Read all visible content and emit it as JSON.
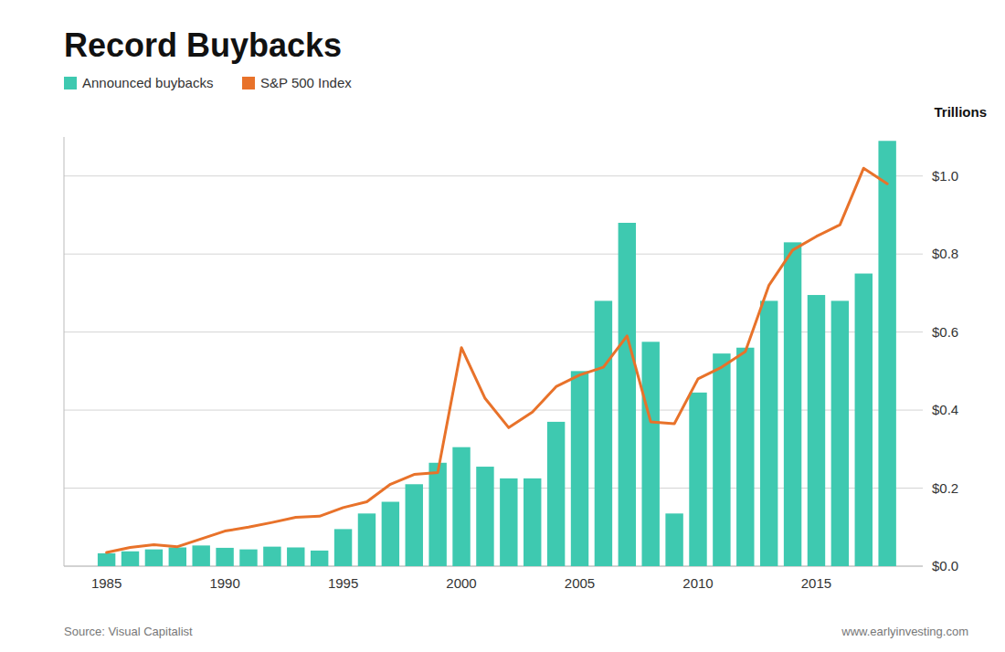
{
  "chart_data": {
    "type": "bar",
    "title": "Record Buybacks",
    "ylabel": "Trillions",
    "annotations": [
      "Source: Visual Capitalist",
      "www.earlyinvesting.com"
    ],
    "x": [
      1985,
      1986,
      1987,
      1988,
      1989,
      1990,
      1991,
      1992,
      1993,
      1994,
      1995,
      1996,
      1997,
      1998,
      1999,
      2000,
      2001,
      2002,
      2003,
      2004,
      2005,
      2006,
      2007,
      2008,
      2009,
      2010,
      2011,
      2012,
      2013,
      2014,
      2015,
      2016,
      2017,
      2018
    ],
    "series": [
      {
        "name": "Announced buybacks",
        "type": "bar",
        "color": "#3EC9B0",
        "values": [
          0.033,
          0.038,
          0.043,
          0.048,
          0.053,
          0.047,
          0.043,
          0.05,
          0.048,
          0.04,
          0.095,
          0.135,
          0.165,
          0.21,
          0.265,
          0.305,
          0.255,
          0.225,
          0.225,
          0.37,
          0.5,
          0.68,
          0.88,
          0.575,
          0.135,
          0.445,
          0.545,
          0.56,
          0.68,
          0.83,
          0.695,
          0.68,
          0.75,
          1.09
        ]
      },
      {
        "name": "S&P 500 Index",
        "type": "line",
        "color": "#E8722A",
        "values": [
          0.035,
          0.048,
          0.055,
          0.05,
          0.07,
          0.09,
          0.1,
          0.112,
          0.125,
          0.128,
          0.15,
          0.165,
          0.21,
          0.235,
          0.24,
          0.56,
          0.43,
          0.355,
          0.395,
          0.46,
          0.49,
          0.51,
          0.59,
          0.37,
          0.365,
          0.48,
          0.51,
          0.55,
          0.72,
          0.81,
          0.845,
          0.875,
          1.02,
          0.98
        ]
      }
    ],
    "xlim": [
      1983.2,
      2019.5
    ],
    "xticks": [
      1985,
      1990,
      1995,
      2000,
      2005,
      2010,
      2015
    ],
    "ylim": [
      0.0,
      1.1
    ],
    "yticks": [
      {
        "value": 0.0,
        "label": "$0.0"
      },
      {
        "value": 0.2,
        "label": "$0.2"
      },
      {
        "value": 0.4,
        "label": "$0.4"
      },
      {
        "value": 0.6,
        "label": "$0.6"
      },
      {
        "value": 0.8,
        "label": "$0.8"
      },
      {
        "value": 1.0,
        "label": "$1.0"
      }
    ],
    "grid": true,
    "legend": "upper left"
  }
}
